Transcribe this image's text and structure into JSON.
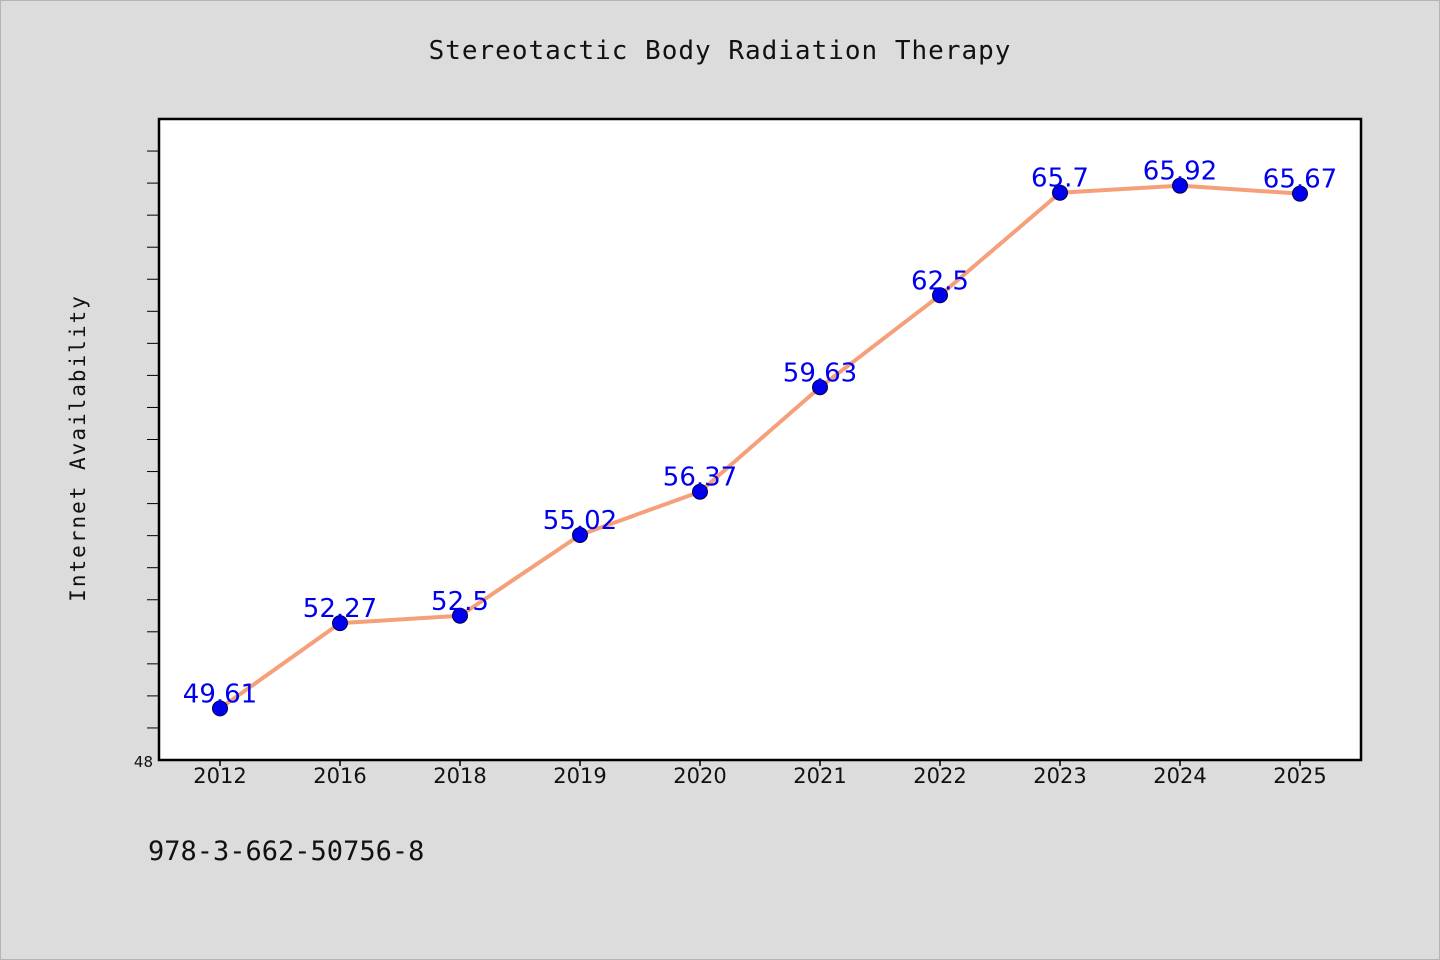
{
  "colors": {
    "background": "#dcdcdc",
    "plot_background": "#ffffff",
    "line": "#f5a07a",
    "marker": "#0000ee",
    "data_label": "#0000ee"
  },
  "caption": "978-3-662-50756-8",
  "chart_data": {
    "type": "line",
    "title": "Stereotactic Body Radiation Therapy",
    "xlabel": "",
    "ylabel": "Internet Availability",
    "categories": [
      "2012",
      "2016",
      "2018",
      "2019",
      "2020",
      "2021",
      "2022",
      "2023",
      "2024",
      "2025"
    ],
    "series": [
      {
        "values": [
          49.61,
          52.27,
          52.5,
          55.02,
          56.37,
          59.63,
          62.5,
          65.7,
          65.92,
          65.67
        ],
        "labels": [
          "49.61",
          "52.27",
          "52.5",
          "55.02",
          "56.37",
          "59.63",
          "62.5",
          "65.7",
          "65.92",
          "65.67"
        ]
      }
    ],
    "ylim": [
      48,
      68
    ],
    "ytick_labels": [
      "48"
    ],
    "minor_tick_step": 1,
    "grid": false,
    "legend": "none"
  }
}
